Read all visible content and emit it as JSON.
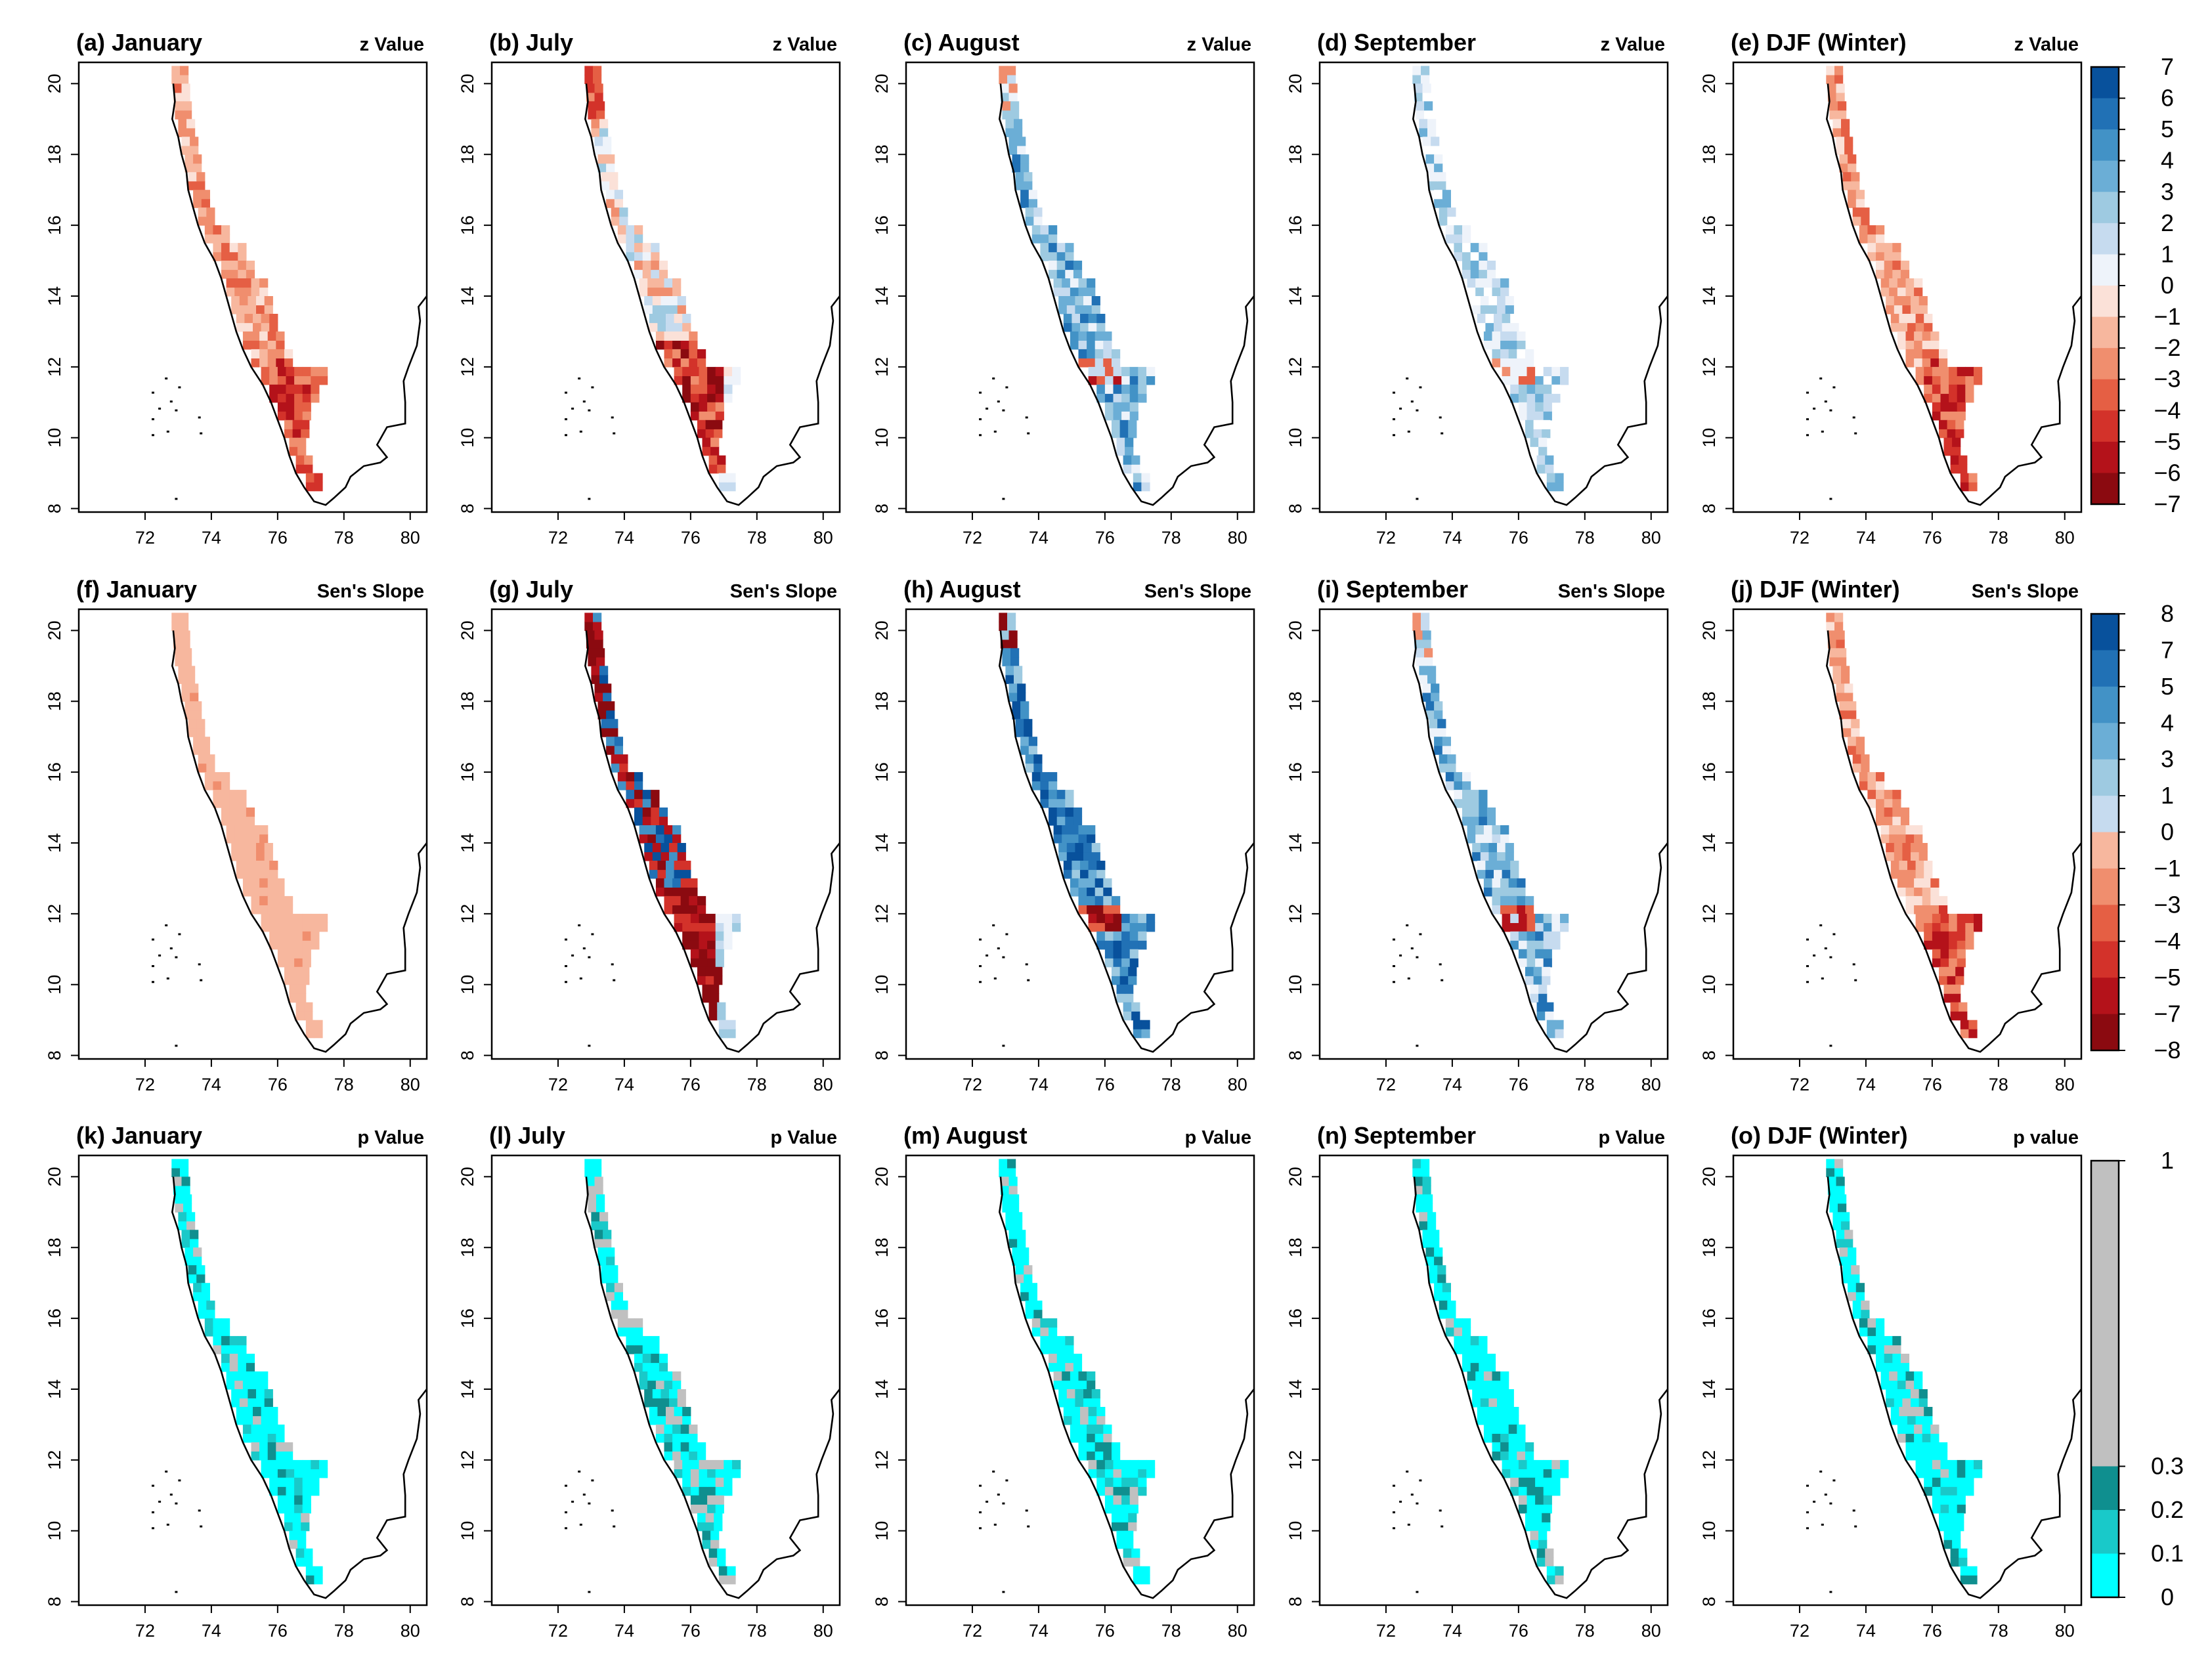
{
  "figure": {
    "colors": {
      "red_scale": [
        "#fbe1d8",
        "#f7b79e",
        "#f08e6e",
        "#e55f44",
        "#d3322a",
        "#b4121a",
        "#8b0a10"
      ],
      "blue_scale": [
        "#eef3fa",
        "#c6dbef",
        "#9ecae1",
        "#6baed6",
        "#4292c6",
        "#2171b5",
        "#08519c"
      ],
      "p_scale": [
        "#00ffff",
        "#19c9c9",
        "#0f8f8f",
        "#c0c0c0"
      ],
      "coast": "#000000"
    },
    "axis": {
      "lon_ticks": [
        "72",
        "74",
        "76",
        "78",
        "80"
      ],
      "lat_ticks": [
        "8",
        "10",
        "12",
        "14",
        "16",
        "18",
        "20"
      ]
    }
  },
  "chart_data": [
    {
      "type": "heatmap",
      "panel": "a",
      "title": "(a) January",
      "metric": "z Value",
      "variable": "z",
      "pattern": "neg",
      "x_range": [
        70,
        80.5
      ],
      "y_range": [
        8,
        20.5
      ]
    },
    {
      "type": "heatmap",
      "panel": "b",
      "title": "(b) July",
      "metric": "z Value",
      "variable": "z",
      "pattern": "mixed",
      "x_range": [
        70,
        80.5
      ],
      "y_range": [
        8,
        20.5
      ]
    },
    {
      "type": "heatmap",
      "panel": "c",
      "title": "(c) August",
      "metric": "z Value",
      "variable": "z",
      "pattern": "pos",
      "x_range": [
        70,
        80.5
      ],
      "y_range": [
        8,
        20.5
      ]
    },
    {
      "type": "heatmap",
      "panel": "d",
      "title": "(d) September",
      "metric": "z Value",
      "variable": "z",
      "pattern": "weakpos",
      "x_range": [
        70,
        80.5
      ],
      "y_range": [
        8,
        20.5
      ]
    },
    {
      "type": "heatmap",
      "panel": "e",
      "title": "(e) DJF (Winter)",
      "metric": "z Value",
      "variable": "z",
      "pattern": "neg",
      "x_range": [
        70,
        80.5
      ],
      "y_range": [
        8,
        20.5
      ]
    },
    {
      "type": "heatmap",
      "panel": "f",
      "title": "(f) January",
      "metric": "Sen's Slope",
      "variable": "slope",
      "pattern": "uniformneg",
      "x_range": [
        70,
        80.5
      ],
      "y_range": [
        8,
        20.5
      ]
    },
    {
      "type": "heatmap",
      "panel": "g",
      "title": "(g) July",
      "metric": "Sen's Slope",
      "variable": "slope",
      "pattern": "strongmixed",
      "x_range": [
        70,
        80.5
      ],
      "y_range": [
        8,
        20.5
      ]
    },
    {
      "type": "heatmap",
      "panel": "h",
      "title": "(h) August",
      "metric": "Sen's Slope",
      "variable": "slope",
      "pattern": "strongpos",
      "x_range": [
        70,
        80.5
      ],
      "y_range": [
        8,
        20.5
      ]
    },
    {
      "type": "heatmap",
      "panel": "i",
      "title": "(i) September",
      "metric": "Sen's Slope",
      "variable": "slope",
      "pattern": "pos",
      "x_range": [
        70,
        80.5
      ],
      "y_range": [
        8,
        20.5
      ]
    },
    {
      "type": "heatmap",
      "panel": "j",
      "title": "(j) DJF (Winter)",
      "metric": "Sen's Slope",
      "variable": "slope",
      "pattern": "neg",
      "x_range": [
        70,
        80.5
      ],
      "y_range": [
        8,
        20.5
      ]
    },
    {
      "type": "heatmap",
      "panel": "k",
      "title": "(k) January",
      "metric": "p Value",
      "variable": "p",
      "pattern": "p_low",
      "x_range": [
        70,
        80.5
      ],
      "y_range": [
        8,
        20.5
      ]
    },
    {
      "type": "heatmap",
      "panel": "l",
      "title": "(l) July",
      "metric": "p Value",
      "variable": "p",
      "pattern": "p_mixed",
      "x_range": [
        70,
        80.5
      ],
      "y_range": [
        8,
        20.5
      ]
    },
    {
      "type": "heatmap",
      "panel": "m",
      "title": "(m) August",
      "metric": "p Value",
      "variable": "p",
      "pattern": "p_low",
      "x_range": [
        70,
        80.5
      ],
      "y_range": [
        8,
        20.5
      ]
    },
    {
      "type": "heatmap",
      "panel": "n",
      "title": "(n) September",
      "metric": "p Value",
      "variable": "p",
      "pattern": "p_low",
      "x_range": [
        70,
        80.5
      ],
      "y_range": [
        8,
        20.5
      ]
    },
    {
      "type": "heatmap",
      "panel": "o",
      "title": "(o) DJF (Winter)",
      "metric": "p value",
      "variable": "p",
      "pattern": "p_low",
      "x_range": [
        70,
        80.5
      ],
      "y_range": [
        8,
        20.5
      ]
    }
  ],
  "colorbars": [
    {
      "variable": "z",
      "labels": [
        "7",
        "6",
        "5",
        "4",
        "3",
        "2",
        "1",
        "0",
        "−1",
        "−2",
        "−3",
        "−4",
        "−5",
        "−6",
        "−7"
      ]
    },
    {
      "variable": "slope",
      "labels": [
        "8",
        "7",
        "5",
        "4",
        "3",
        "1",
        "0",
        "−1",
        "−3",
        "−4",
        "−5",
        "−7",
        "−8"
      ]
    },
    {
      "variable": "p",
      "labels": [
        "1",
        "0.3",
        "0.2",
        "0.1",
        "0"
      ]
    }
  ]
}
